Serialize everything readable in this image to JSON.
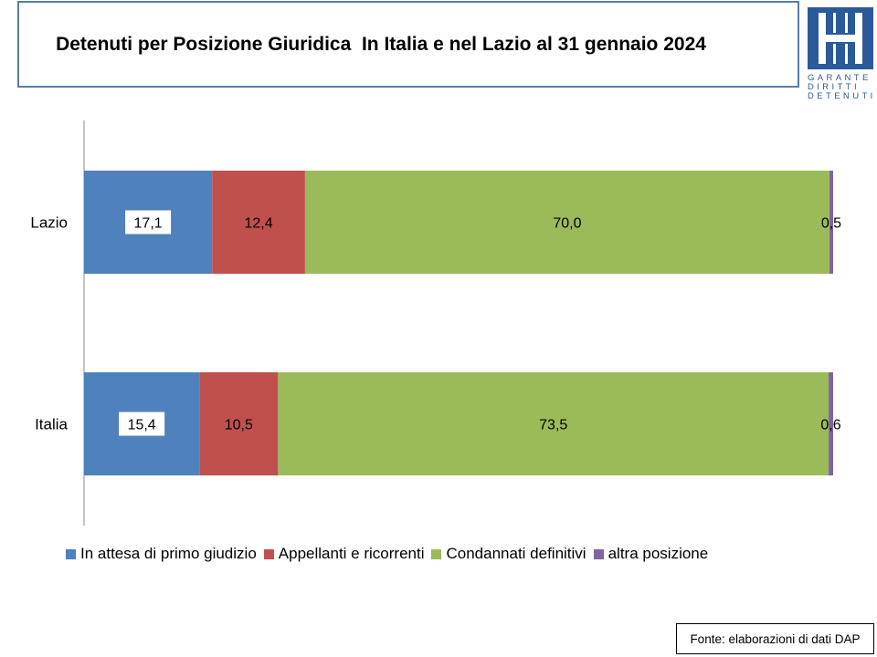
{
  "title": "Detenuti per Posizione Giuridica  In Italia e nel Lazio al 31 gennaio 2024",
  "logo": {
    "lines": [
      "GARANTE",
      "DIRITTI",
      "DETENUTI"
    ],
    "color": "#2a5a9a"
  },
  "source": "Fonte: elaborazioni di dati DAP",
  "chart_data": {
    "type": "bar",
    "orientation": "horizontal",
    "stacked": true,
    "categories": [
      "Lazio",
      "Italia"
    ],
    "series": [
      {
        "name": "In attesa di primo giudizio",
        "color": "#4f81bd",
        "values": [
          17.1,
          15.4
        ],
        "labels": [
          "17,1",
          "15,4"
        ]
      },
      {
        "name": "Appellanti e ricorrenti",
        "color": "#c0504d",
        "values": [
          12.4,
          10.5
        ],
        "labels": [
          "12,4",
          "10,5"
        ]
      },
      {
        "name": "Condannati definitivi",
        "color": "#9bbb59",
        "values": [
          70.0,
          73.5
        ],
        "labels": [
          "70,0",
          "73,5"
        ]
      },
      {
        "name": "altra posizione",
        "color": "#8064a2",
        "values": [
          0.5,
          0.6
        ],
        "labels": [
          "0,5",
          "0,6"
        ]
      }
    ],
    "xlim": [
      0,
      100
    ],
    "grid": false,
    "legend": "bottom"
  }
}
